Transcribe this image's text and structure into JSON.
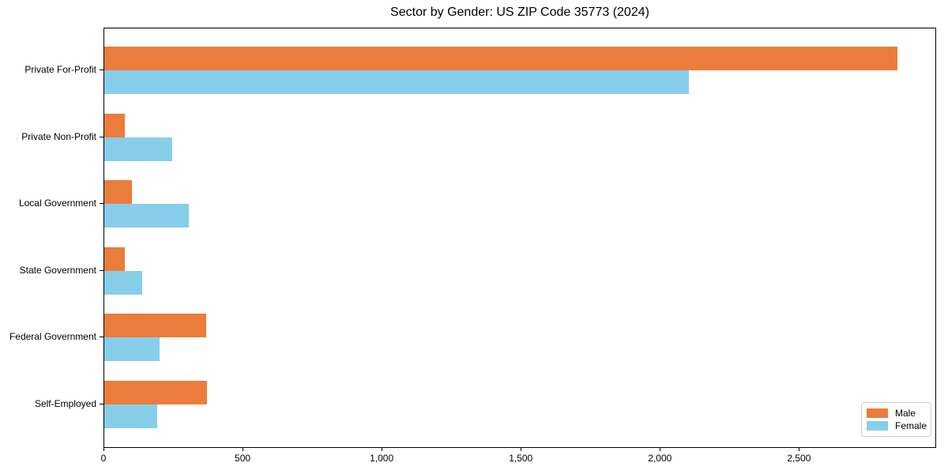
{
  "chart_data": {
    "type": "bar",
    "orientation": "horizontal",
    "title": "Sector by Gender: US ZIP Code 35773 (2024)",
    "categories": [
      "Private For-Profit",
      "Private Non-Profit",
      "Local Government",
      "State Government",
      "Federal Government",
      "Self-Employed"
    ],
    "series": [
      {
        "name": "Male",
        "color": "#ea7d3c",
        "values": [
          2850,
          75,
          100,
          75,
          365,
          370
        ]
      },
      {
        "name": "Female",
        "color": "#87ceeb",
        "values": [
          2100,
          245,
          305,
          135,
          200,
          190
        ]
      }
    ],
    "xlabel": "",
    "ylabel": "",
    "xlim": [
      0,
      2993
    ],
    "x_ticks": {
      "values": [
        0,
        500,
        1000,
        1500,
        2000,
        2500
      ],
      "labels": [
        "0",
        "500",
        "1,000",
        "1,500",
        "2,000",
        "2,500"
      ]
    },
    "grid": false,
    "legend": {
      "position": "lower-right",
      "entries": [
        "Male",
        "Female"
      ]
    },
    "colors": {
      "axis": "#000000",
      "text": "#000000",
      "legend_border": "#cccccc",
      "background": "#ffffff"
    }
  }
}
